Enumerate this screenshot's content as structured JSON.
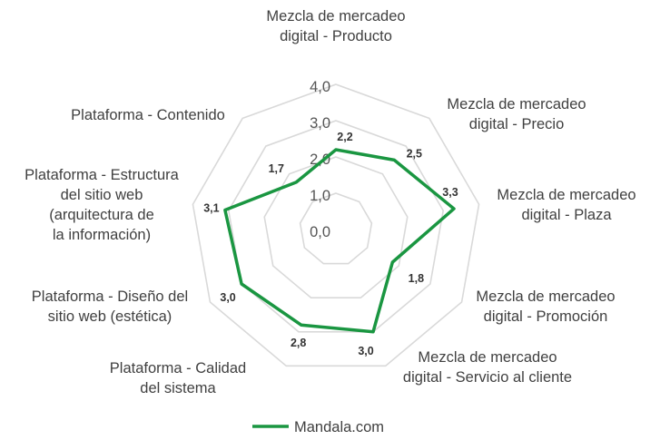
{
  "chart_data": {
    "type": "radar",
    "categories": [
      "Mezcla de mercadeo digital - Producto",
      "Mezcla de mercadeo digital - Precio",
      "Mezcla de mercadeo digital - Plaza",
      "Mezcla de mercadeo digital - Promoción",
      "Mezcla de mercadeo digital - Servicio al cliente",
      "Plataforma - Calidad del sistema",
      "Plataforma - Diseño del sitio web (estética)",
      "Plataforma - Estructura del sitio web (arquitectura de la información)",
      "Plataforma - Contenido"
    ],
    "category_lines": [
      [
        "Mezcla de mercadeo",
        "digital - Producto"
      ],
      [
        "Mezcla de mercadeo",
        "digital - Precio"
      ],
      [
        "Mezcla de mercadeo",
        "digital - Plaza"
      ],
      [
        "Mezcla de mercadeo",
        "digital - Promoción"
      ],
      [
        "Mezcla de mercadeo",
        "digital - Servicio al cliente"
      ],
      [
        "Plataforma - Calidad",
        "del sistema"
      ],
      [
        "Plataforma - Diseño del",
        "sitio web (estética)"
      ],
      [
        "Plataforma - Estructura",
        "del sitio web",
        "(arquitectura de",
        "la información)"
      ],
      [
        "Plataforma - Contenido"
      ]
    ],
    "series": [
      {
        "name": "Mandala.com",
        "values": [
          2.2,
          2.5,
          3.3,
          1.8,
          3.0,
          2.8,
          3.0,
          3.1,
          1.7
        ],
        "value_labels": [
          "2,2",
          "2,5",
          "3,3",
          "1,8",
          "3,0",
          "2,8",
          "3,0",
          "3,1",
          "1,7"
        ],
        "color": "#1a9641"
      }
    ],
    "rlim": [
      0,
      4
    ],
    "ticks": [
      0,
      1,
      2,
      3,
      4
    ],
    "tick_labels": [
      "0,0",
      "1,0",
      "2,0",
      "3,0",
      "4,0"
    ],
    "grid": true,
    "grid_color": "#d9d9d9",
    "legend": "bottom"
  }
}
